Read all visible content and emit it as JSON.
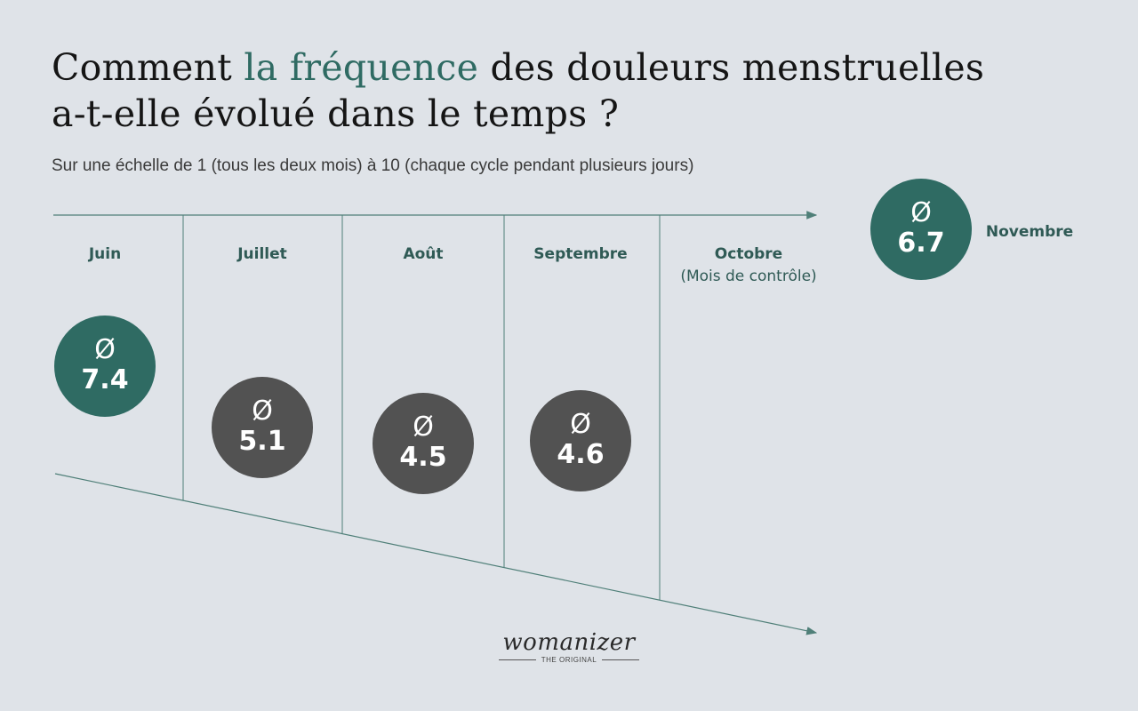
{
  "title": {
    "before": "Comment ",
    "accent": "la fréquence",
    "after": " des douleurs menstruelles a-t-elle évolué dans le temps ?"
  },
  "subtitle": "Sur une échelle de 1 (tous les deux mois) à 10 (chaque cycle pendant plusieurs jours)",
  "symbol": "Ø",
  "colors": {
    "background": "#dfe3e8",
    "accent": "#2f6b63",
    "muted": "#525252",
    "line": "#4f7f78"
  },
  "chart_data": {
    "type": "bubble-timeline",
    "title": "Comment la fréquence des douleurs menstruelles a-t-elle évolué dans le temps ?",
    "subtitle": "Sur une échelle de 1 (tous les deux mois) à 10 (chaque cycle pendant plusieurs jours)",
    "value_prefix": "Ø",
    "scale": [
      1,
      10
    ],
    "categories": [
      "Juin",
      "Juillet",
      "Août",
      "Septembre",
      "Octobre",
      "Novembre"
    ],
    "notes": {
      "Octobre": "(Mois de contrôle)"
    },
    "values": [
      7.4,
      5.1,
      4.5,
      4.6,
      null,
      6.7
    ],
    "display_values": [
      "7.4",
      "5.1",
      "4.5",
      "4.6",
      "",
      "6.7"
    ],
    "highlight": [
      true,
      false,
      false,
      false,
      false,
      true
    ]
  },
  "logo": {
    "brand": "womanizer",
    "tagline": "THE ORIGINAL"
  }
}
